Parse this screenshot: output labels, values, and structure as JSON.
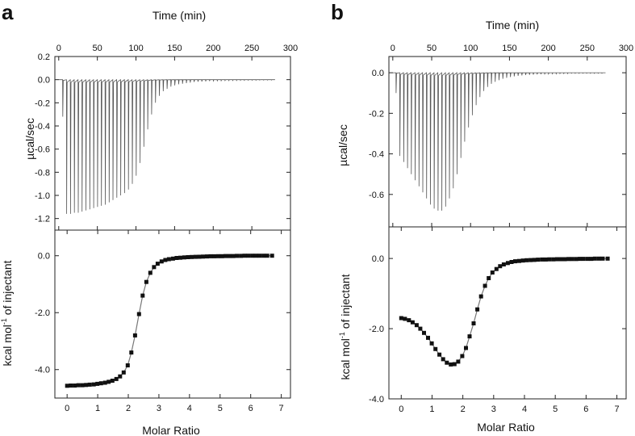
{
  "chart_data": [
    {
      "panel": "a",
      "type": "line",
      "part": "raw-thermogram",
      "xlabel": "Time (min)",
      "ylabel": "µcal/sec",
      "xlim": [
        -5,
        300
      ],
      "ylim": [
        -1.3,
        0.2
      ],
      "xticks": [
        0,
        50,
        100,
        150,
        200,
        250,
        300
      ],
      "yticks": [
        0.2,
        0.0,
        -0.2,
        -0.4,
        -0.6,
        -0.8,
        -1.0,
        -1.2
      ],
      "ytick_labels": [
        "0.2",
        "0.0",
        "-0.2",
        "-0.4",
        "-0.6",
        "-0.8",
        "-1.0",
        "-1.2"
      ],
      "baseline": 0.0,
      "injection_start_min": 5,
      "injection_interval_min": 5,
      "peak_values": [
        -0.32,
        -1.16,
        -1.16,
        -1.15,
        -1.15,
        -1.14,
        -1.13,
        -1.12,
        -1.11,
        -1.1,
        -1.09,
        -1.08,
        -1.06,
        -1.04,
        -1.02,
        -1.0,
        -0.98,
        -0.95,
        -0.9,
        -0.83,
        -0.72,
        -0.58,
        -0.43,
        -0.3,
        -0.2,
        -0.14,
        -0.1,
        -0.08,
        -0.06,
        -0.05,
        -0.04,
        -0.035,
        -0.03,
        -0.025,
        -0.02,
        -0.018,
        -0.016,
        -0.014,
        -0.012,
        -0.011,
        -0.01,
        -0.009,
        -0.008,
        -0.008,
        -0.007,
        -0.007,
        -0.006,
        -0.006,
        -0.005,
        -0.005,
        -0.005,
        -0.004,
        -0.004,
        -0.004,
        -0.004
      ]
    },
    {
      "panel": "a",
      "type": "scatter",
      "part": "integrated-heats",
      "xlabel": "Molar Ratio",
      "ylabel": "kcal mol⁻¹ of injectant",
      "xlim": [
        -0.4,
        7.3
      ],
      "ylim": [
        -5.0,
        0.9
      ],
      "xticks": [
        0,
        1,
        2,
        3,
        4,
        5,
        6,
        7
      ],
      "yticks": [
        0.0,
        -2.0,
        -4.0
      ],
      "ytick_labels": [
        "0.0",
        "-2.0",
        "-4.0"
      ],
      "x": [
        0.0,
        0.12,
        0.25,
        0.37,
        0.5,
        0.62,
        0.74,
        0.87,
        0.99,
        1.11,
        1.24,
        1.36,
        1.48,
        1.61,
        1.73,
        1.85,
        1.98,
        2.1,
        2.22,
        2.35,
        2.47,
        2.59,
        2.72,
        2.84,
        2.96,
        3.09,
        3.21,
        3.33,
        3.46,
        3.58,
        3.7,
        3.83,
        3.95,
        4.07,
        4.2,
        4.32,
        4.44,
        4.57,
        4.69,
        4.81,
        4.94,
        5.06,
        5.18,
        5.31,
        5.43,
        5.55,
        5.68,
        5.8,
        5.92,
        6.05,
        6.17,
        6.29,
        6.42,
        6.54,
        6.7
      ],
      "y": [
        -4.57,
        -4.56,
        -4.56,
        -4.55,
        -4.55,
        -4.54,
        -4.53,
        -4.52,
        -4.5,
        -4.48,
        -4.46,
        -4.43,
        -4.39,
        -4.33,
        -4.24,
        -4.1,
        -3.85,
        -3.4,
        -2.8,
        -2.05,
        -1.4,
        -0.92,
        -0.6,
        -0.4,
        -0.28,
        -0.2,
        -0.15,
        -0.12,
        -0.1,
        -0.08,
        -0.07,
        -0.06,
        -0.05,
        -0.045,
        -0.04,
        -0.035,
        -0.03,
        -0.025,
        -0.02,
        -0.02,
        -0.015,
        -0.015,
        -0.01,
        -0.01,
        -0.01,
        -0.005,
        -0.005,
        0.0,
        0.0,
        0.0,
        0.0,
        0.0,
        0.0,
        0.0,
        0.0
      ]
    },
    {
      "panel": "b",
      "type": "line",
      "part": "raw-thermogram",
      "xlabel": "Time (min)",
      "ylabel": "µcal/sec",
      "xlim": [
        -5,
        300
      ],
      "ylim": [
        -0.76,
        0.08
      ],
      "xticks": [
        0,
        50,
        100,
        150,
        200,
        250,
        300
      ],
      "yticks": [
        0.0,
        -0.2,
        -0.4,
        -0.6
      ],
      "ytick_labels": [
        "0.0",
        "-0.2",
        "-0.4",
        "-0.6"
      ],
      "baseline": 0.0,
      "injection_start_min": 4,
      "injection_interval_min": 4.9,
      "peak_values": [
        -0.1,
        -0.41,
        -0.44,
        -0.47,
        -0.5,
        -0.53,
        -0.56,
        -0.59,
        -0.62,
        -0.65,
        -0.67,
        -0.68,
        -0.68,
        -0.66,
        -0.62,
        -0.57,
        -0.5,
        -0.42,
        -0.34,
        -0.27,
        -0.21,
        -0.16,
        -0.12,
        -0.09,
        -0.07,
        -0.055,
        -0.045,
        -0.037,
        -0.03,
        -0.025,
        -0.021,
        -0.018,
        -0.015,
        -0.013,
        -0.011,
        -0.01,
        -0.009,
        -0.008,
        -0.007,
        -0.006,
        -0.006,
        -0.005,
        -0.005,
        -0.004,
        -0.004,
        -0.004,
        -0.003,
        -0.003,
        -0.003,
        -0.003,
        -0.003,
        -0.003,
        -0.003,
        -0.003,
        -0.003
      ]
    },
    {
      "panel": "b",
      "type": "scatter",
      "part": "integrated-heats",
      "xlabel": "Molar Ratio",
      "ylabel": "kcal mol⁻¹ of injectant",
      "xlim": [
        -0.4,
        7.3
      ],
      "ylim": [
        -4.0,
        0.9
      ],
      "xticks": [
        0,
        1,
        2,
        3,
        4,
        5,
        6,
        7
      ],
      "yticks": [
        0.0,
        -2.0,
        -4.0
      ],
      "ytick_labels": [
        "0.0",
        "-2.0",
        "-4.0"
      ],
      "x": [
        0.0,
        0.12,
        0.25,
        0.37,
        0.5,
        0.62,
        0.74,
        0.87,
        0.99,
        1.11,
        1.24,
        1.36,
        1.48,
        1.61,
        1.73,
        1.85,
        1.98,
        2.1,
        2.22,
        2.35,
        2.47,
        2.59,
        2.72,
        2.84,
        2.96,
        3.09,
        3.21,
        3.33,
        3.46,
        3.58,
        3.7,
        3.83,
        3.95,
        4.07,
        4.2,
        4.32,
        4.44,
        4.57,
        4.69,
        4.81,
        4.94,
        5.06,
        5.18,
        5.31,
        5.43,
        5.55,
        5.68,
        5.8,
        5.92,
        6.05,
        6.17,
        6.29,
        6.42,
        6.54,
        6.7
      ],
      "y": [
        -1.7,
        -1.72,
        -1.76,
        -1.82,
        -1.9,
        -2.0,
        -2.12,
        -2.26,
        -2.42,
        -2.58,
        -2.74,
        -2.87,
        -2.97,
        -3.02,
        -3.01,
        -2.94,
        -2.78,
        -2.55,
        -2.22,
        -1.85,
        -1.45,
        -1.08,
        -0.78,
        -0.56,
        -0.4,
        -0.3,
        -0.22,
        -0.17,
        -0.13,
        -0.1,
        -0.08,
        -0.07,
        -0.06,
        -0.05,
        -0.045,
        -0.04,
        -0.035,
        -0.03,
        -0.03,
        -0.025,
        -0.025,
        -0.02,
        -0.02,
        -0.02,
        -0.015,
        -0.015,
        -0.015,
        -0.01,
        -0.01,
        -0.01,
        -0.01,
        -0.005,
        -0.005,
        -0.005,
        -0.005
      ]
    }
  ],
  "panels": {
    "a": {
      "label": "a",
      "xlabel_top": "Time (min)",
      "ylabel_top": "µcal/sec",
      "xlabel_bottom": "Molar Ratio",
      "ylabel_bottom_main": "kcal mol",
      "ylabel_bottom_sup": "-1",
      "ylabel_bottom_rest": " of injectant"
    },
    "b": {
      "label": "b",
      "xlabel_top": "Time (min)",
      "ylabel_top": "µcal/sec",
      "xlabel_bottom": "Molar Ratio",
      "ylabel_bottom_main": "kcal mol",
      "ylabel_bottom_sup": "-1",
      "ylabel_bottom_rest": " of injectant"
    }
  },
  "colors": {
    "trace": "#555555",
    "marker": "#111111",
    "fit_line": "#777777",
    "axis": "#222222"
  }
}
